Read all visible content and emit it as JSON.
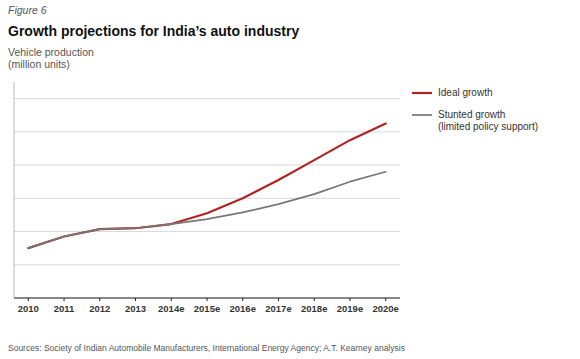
{
  "chart_data": {
    "type": "line",
    "title": "Growth projections for India’s auto industry",
    "y_label": "Vehicle production\n(million units)",
    "annotations": [
      "Figure 6",
      "Sources: Society of Indian Automobile Manufacturers, International Energy Agency; A.T. Kearney analysis"
    ],
    "x": [
      2010,
      2011,
      2012,
      2013,
      2014,
      2015,
      2016,
      2017,
      2018,
      2019,
      2020
    ],
    "series": [
      {
        "name": "Ideal growth",
        "color": "#b22222",
        "values": [
          3.0,
          3.7,
          4.15,
          4.2,
          4.45,
          5.1,
          6.0,
          7.1,
          8.3,
          9.5,
          10.5
        ]
      },
      {
        "name": "Stunted growth\n(limited policy support)",
        "color": "#777777",
        "values": [
          3.0,
          3.7,
          4.15,
          4.2,
          4.45,
          4.75,
          5.15,
          5.65,
          6.25,
          7.0,
          7.6
        ]
      }
    ],
    "xlim": [
      2009.6,
      2020.4
    ],
    "xticks": [
      2010,
      2011,
      2012,
      2013,
      {
        "value": 2014,
        "label": "2014e"
      },
      {
        "value": 2015,
        "label": "2015e"
      },
      {
        "value": 2016,
        "label": "2016e"
      },
      {
        "value": 2017,
        "label": "2017e"
      },
      {
        "value": 2018,
        "label": "2018e"
      },
      {
        "value": 2019,
        "label": "2019e"
      },
      {
        "value": 2020,
        "label": "2020e"
      }
    ],
    "ylim": [
      0,
      13
    ],
    "yticks": [
      0,
      2,
      4,
      6,
      8,
      10,
      12
    ],
    "grid": true,
    "legend": "right",
    "tick_labels": "x"
  }
}
